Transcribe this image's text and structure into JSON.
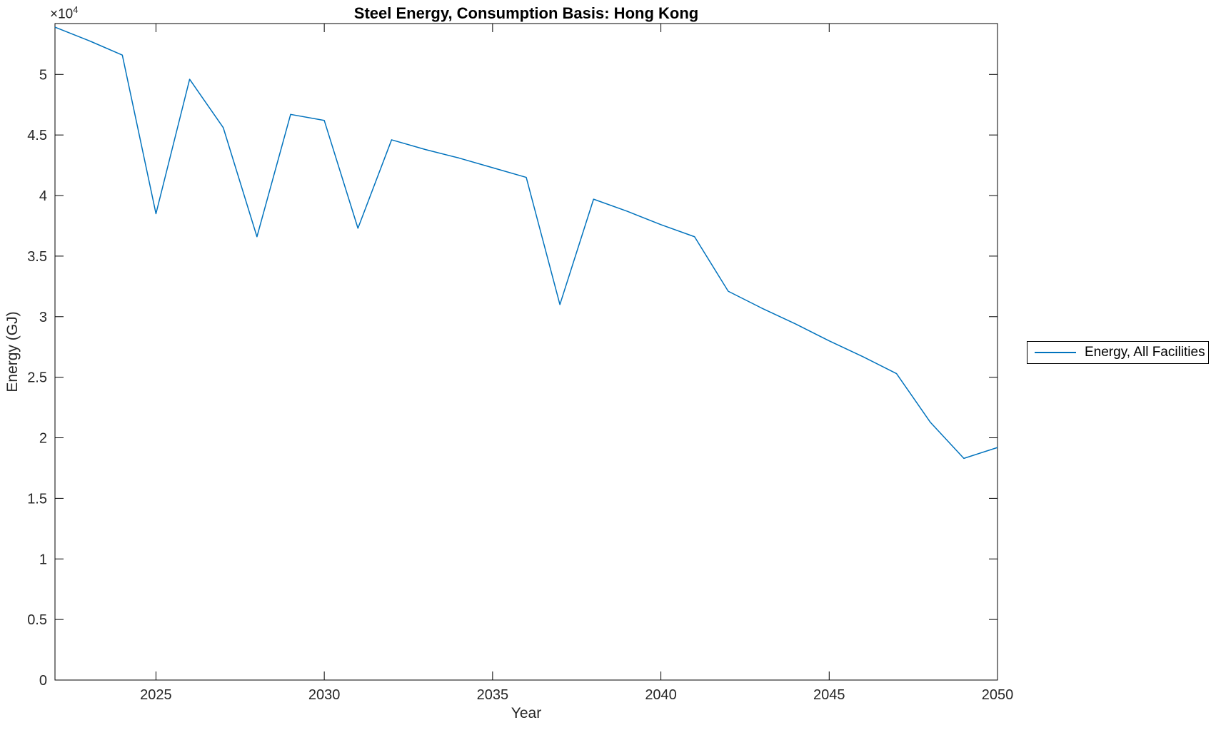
{
  "chart_data": {
    "type": "line",
    "title": "Steel Energy, Consumption Basis: Hong Kong",
    "xlabel": "Year",
    "ylabel": "Energy (GJ)",
    "y_offset_base": "×10",
    "y_offset_exp": "4",
    "x": [
      2022,
      2023,
      2024,
      2025,
      2026,
      2027,
      2028,
      2029,
      2030,
      2031,
      2032,
      2033,
      2034,
      2035,
      2036,
      2037,
      2038,
      2039,
      2040,
      2041,
      2042,
      2043,
      2044,
      2045,
      2046,
      2047,
      2048,
      2049,
      2050
    ],
    "series": [
      {
        "name": "Energy, All Facilities",
        "color": "#0072BD",
        "values": [
          53900,
          52800,
          51600,
          38500,
          49600,
          45600,
          36600,
          46700,
          46200,
          37300,
          44600,
          43800,
          43100,
          42300,
          41500,
          31000,
          39700,
          38700,
          37600,
          36600,
          32100,
          30700,
          29400,
          28000,
          26700,
          25300,
          21300,
          18300,
          19200
        ]
      }
    ],
    "xlim": [
      2022,
      2050
    ],
    "ylim": [
      0,
      54200
    ],
    "xticks": [
      2025,
      2030,
      2035,
      2040,
      2045,
      2050
    ],
    "xtick_labels": [
      "2025",
      "2030",
      "2035",
      "2040",
      "2045",
      "2050"
    ],
    "yticks": [
      0,
      5000,
      10000,
      15000,
      20000,
      25000,
      30000,
      35000,
      40000,
      45000,
      50000
    ],
    "ytick_labels": [
      "0",
      "0.5",
      "1",
      "1.5",
      "2",
      "2.5",
      "3",
      "3.5",
      "4",
      "4.5",
      "5"
    ],
    "grid": false,
    "legend_position": "right-outside",
    "colors": {
      "line": "#0072BD",
      "frame": "#000000",
      "tick_label": "#262626",
      "background": "#ffffff"
    }
  }
}
